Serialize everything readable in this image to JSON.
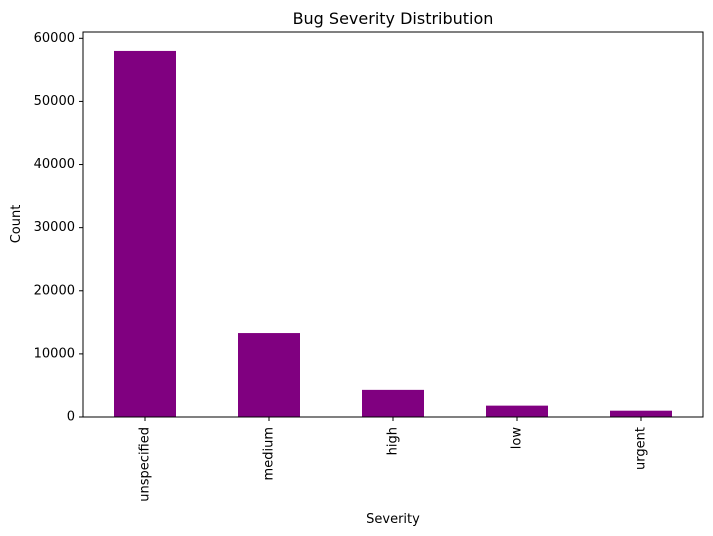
{
  "chart_data": {
    "type": "bar",
    "title": "Bug Severity Distribution",
    "xlabel": "Severity",
    "ylabel": "Count",
    "categories": [
      "unspecified",
      "medium",
      "high",
      "low",
      "urgent"
    ],
    "values": [
      58000,
      13300,
      4300,
      1800,
      1000
    ],
    "ylim": [
      0,
      61000
    ],
    "yticks": [
      0,
      10000,
      20000,
      30000,
      40000,
      50000,
      60000
    ],
    "bar_color": "#800080",
    "grid": false,
    "legend": "none"
  }
}
